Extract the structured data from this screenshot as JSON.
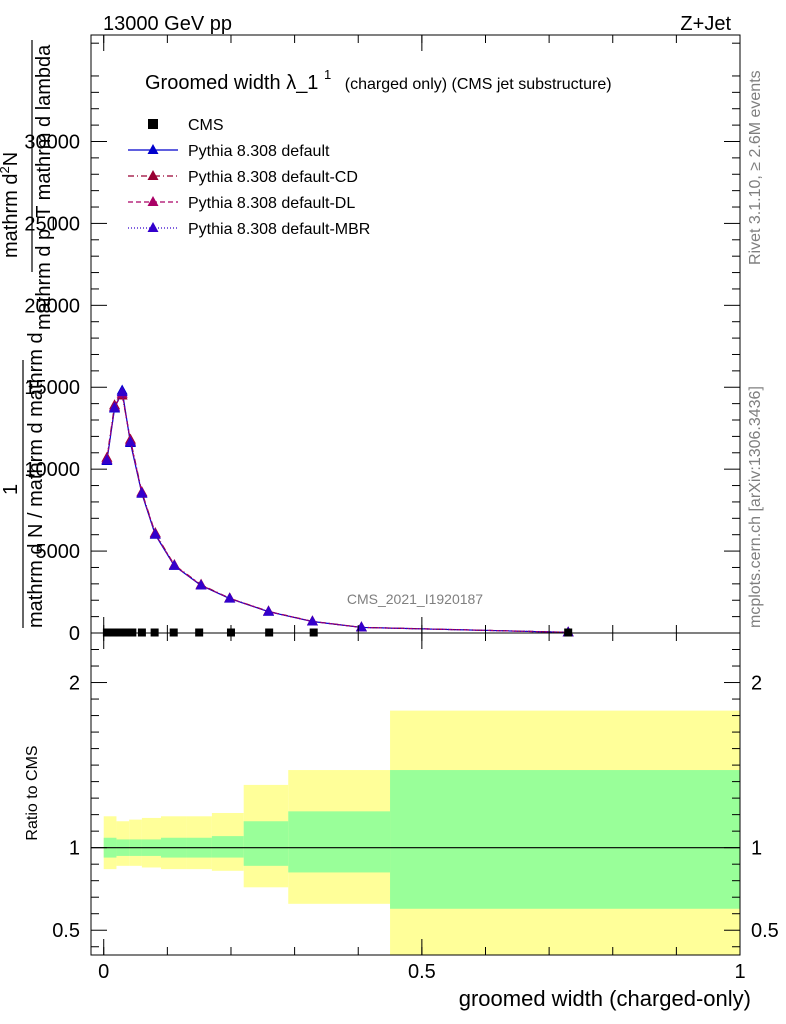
{
  "header": {
    "left": "13000 GeV pp",
    "right": "Z+Jet"
  },
  "side": {
    "rivet": "Rivet 3.1.10, ≥ 2.6M events",
    "mcplots": "mcplots.cern.ch [arXiv:1306.3436]"
  },
  "watermark": "CMS_2021_I1920187",
  "chart_data": [
    {
      "type": "line",
      "title_main": "Groomed width",
      "title_lambda": "λ_1",
      "title_sup": "1",
      "title_rest": "(charged only) (CMS jet substructure)",
      "ylabel_num_1": "mathrm d",
      "ylabel_num_sup": "2",
      "ylabel_num_2": "N",
      "ylabel_den": "mathrm d p_T mathrm d lambda",
      "ylabel_frac": "1",
      "ylabel_den2": "mathrm d N / mathrm d mathrm d",
      "xlim": [
        -0.02,
        1.0
      ],
      "ylim": [
        0,
        36500
      ],
      "yticks": [
        0,
        5000,
        10000,
        15000,
        20000,
        25000,
        30000
      ],
      "ytick_labels": [
        "0",
        "5000",
        "10000",
        "15000",
        "20000",
        "25000",
        "30000"
      ],
      "legend": [
        {
          "name": "CMS",
          "marker": "square",
          "style": "none",
          "color": "#000000"
        },
        {
          "name": "Pythia 8.308 default",
          "marker": "triangle",
          "style": "solid",
          "color": "#0000cc"
        },
        {
          "name": "Pythia 8.308 default-CD",
          "marker": "triangle",
          "style": "dashdot",
          "color": "#990033"
        },
        {
          "name": "Pythia 8.308 default-DL",
          "marker": "triangle",
          "style": "dashed",
          "color": "#aa0066"
        },
        {
          "name": "Pythia 8.308 default-MBR",
          "marker": "triangle",
          "style": "dotted",
          "color": "#3300cc"
        }
      ],
      "cms": {
        "x": [
          0.005,
          0.015,
          0.025,
          0.035,
          0.045,
          0.06,
          0.08,
          0.11,
          0.15,
          0.2,
          0.26,
          0.33,
          0.73
        ],
        "y": [
          30,
          30,
          30,
          30,
          30,
          30,
          30,
          30,
          30,
          30,
          30,
          30,
          30
        ]
      },
      "series": [
        {
          "name": "Pythia 8.308 default",
          "color": "#0000cc",
          "x": [
            0.005,
            0.017,
            0.029,
            0.042,
            0.06,
            0.081,
            0.111,
            0.153,
            0.198,
            0.259,
            0.328,
            0.405,
            0.73
          ],
          "y": [
            10500,
            13700,
            14800,
            11600,
            8500,
            6000,
            4100,
            2900,
            2100,
            1300,
            700,
            340,
            40
          ]
        },
        {
          "name": "Pythia 8.308 default-CD",
          "color": "#990033",
          "x": [
            0.005,
            0.017,
            0.029,
            0.042,
            0.06,
            0.081,
            0.111,
            0.153,
            0.198,
            0.259,
            0.328,
            0.405,
            0.73
          ],
          "y": [
            10700,
            13900,
            14500,
            11800,
            8600,
            6100,
            4150,
            2950,
            2120,
            1320,
            710,
            345,
            42
          ]
        },
        {
          "name": "Pythia 8.308 default-DL",
          "color": "#aa0066",
          "x": [
            0.005,
            0.017,
            0.029,
            0.042,
            0.06,
            0.081,
            0.111,
            0.153,
            0.198,
            0.259,
            0.328,
            0.405,
            0.73
          ],
          "y": [
            10600,
            13800,
            14600,
            11700,
            8550,
            6050,
            4120,
            2920,
            2110,
            1310,
            705,
            342,
            41
          ]
        },
        {
          "name": "Pythia 8.308 default-MBR",
          "color": "#3300cc",
          "x": [
            0.005,
            0.017,
            0.029,
            0.042,
            0.06,
            0.081,
            0.111,
            0.153,
            0.198,
            0.259,
            0.328,
            0.405,
            0.73
          ],
          "y": [
            10550,
            13750,
            14700,
            11650,
            8520,
            6020,
            4110,
            2910,
            2105,
            1305,
            702,
            341,
            40
          ]
        }
      ]
    },
    {
      "type": "area",
      "ylabel": "Ratio to CMS",
      "xlabel": "groomed width (charged-only)",
      "xlim": [
        -0.02,
        1.0
      ],
      "ylim": [
        0.35,
        2.3
      ],
      "xticks": [
        0,
        0.5,
        1
      ],
      "xtick_labels": [
        "0",
        "0.5",
        "1"
      ],
      "yticks": [
        0.5,
        1,
        2
      ],
      "ytick_labels": [
        "0.5",
        "1",
        "2"
      ],
      "reference": 1,
      "bands": {
        "edges": [
          0,
          0.02,
          0.04,
          0.06,
          0.09,
          0.13,
          0.17,
          0.22,
          0.29,
          0.45,
          1.0
        ],
        "green_lo": [
          0.94,
          0.95,
          0.95,
          0.95,
          0.94,
          0.94,
          0.94,
          0.89,
          0.85,
          0.63
        ],
        "green_hi": [
          1.06,
          1.05,
          1.05,
          1.05,
          1.06,
          1.06,
          1.07,
          1.16,
          1.22,
          1.47
        ],
        "yellow_lo": [
          0.87,
          0.89,
          0.89,
          0.88,
          0.87,
          0.87,
          0.86,
          0.76,
          0.66,
          0.35
        ],
        "yellow_hi": [
          1.19,
          1.16,
          1.17,
          1.18,
          1.19,
          1.19,
          1.21,
          1.38,
          1.47,
          1.83
        ]
      }
    }
  ],
  "colors": {
    "green_band": "#99ff99",
    "yellow_band": "#ffff99"
  }
}
